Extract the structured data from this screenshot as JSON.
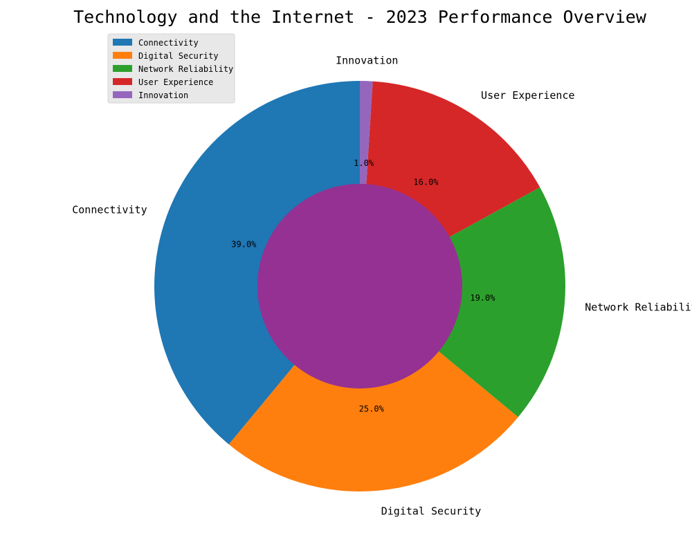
{
  "chart_data": {
    "type": "pie",
    "title": "Technology and the Internet - 2023 Performance Overview",
    "categories": [
      "Connectivity",
      "Digital Security",
      "Network Reliability",
      "User Experience",
      "Innovation"
    ],
    "values": [
      39,
      25,
      19,
      16,
      1
    ],
    "percent_labels": [
      "39.0%",
      "25.0%",
      "19.0%",
      "16.0%",
      "1.0%"
    ],
    "colors": [
      "#1f77b4",
      "#ff7f0e",
      "#2ca02c",
      "#d62728",
      "#9467bd"
    ],
    "center_color": "#953193",
    "start_angle_deg": 90,
    "direction": "counterclockwise",
    "legend": {
      "placement": "upper-left",
      "entries": [
        "Connectivity",
        "Digital Security",
        "Network Reliability",
        "User Experience",
        "Innovation"
      ]
    }
  }
}
